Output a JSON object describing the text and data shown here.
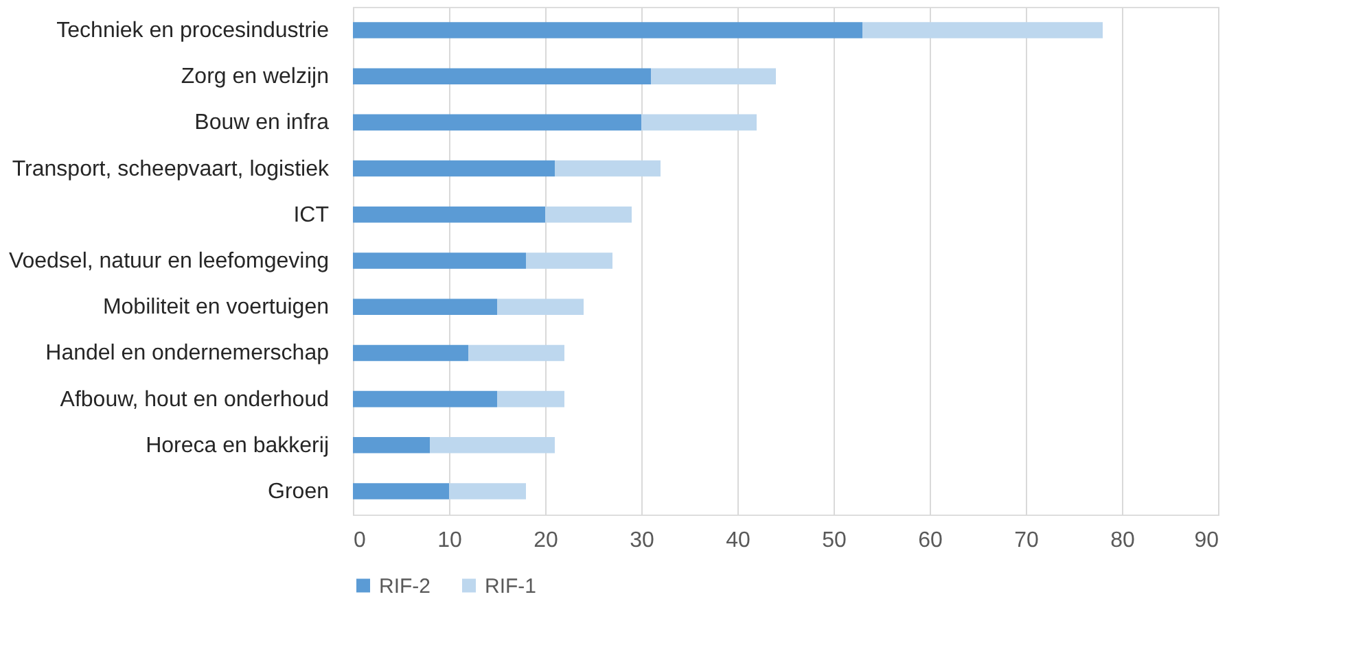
{
  "chart_data": {
    "type": "bar",
    "orientation": "horizontal",
    "stacked": true,
    "categories": [
      "Techniek en procesindustrie",
      "Zorg en welzijn",
      "Bouw en infra",
      "Transport, scheepvaart, logistiek",
      "ICT",
      "Voedsel, natuur en leefomgeving",
      "Mobiliteit en voertuigen",
      "Handel en ondernemerschap",
      "Afbouw, hout en onderhoud",
      "Horeca en bakkerij",
      "Groen"
    ],
    "series": [
      {
        "name": "RIF-2",
        "color": "#5b9bd5",
        "values": [
          53,
          31,
          30,
          21,
          20,
          18,
          15,
          12,
          15,
          8,
          10
        ]
      },
      {
        "name": "RIF-1",
        "color": "#bdd7ee",
        "values": [
          25,
          13,
          12,
          11,
          9,
          9,
          9,
          10,
          7,
          13,
          8
        ]
      }
    ],
    "xlim": [
      0,
      90
    ],
    "xticks": [
      0,
      10,
      20,
      30,
      40,
      50,
      60,
      70,
      80,
      90
    ],
    "grid": "x",
    "legend": "bottom"
  }
}
